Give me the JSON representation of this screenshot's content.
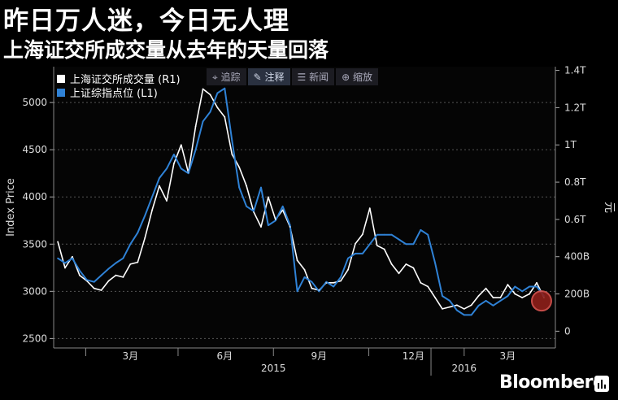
{
  "header": {
    "title": "昨日万人迷，今日无人理",
    "subtitle": "上海证交所成交量从去年的天量回落"
  },
  "toolbar": {
    "items": [
      {
        "label": "追踪",
        "icon": "crosshair-icon"
      },
      {
        "label": "注释",
        "icon": "pencil-icon"
      },
      {
        "label": "新闻",
        "icon": "news-icon"
      },
      {
        "label": "缩放",
        "icon": "zoom-icon"
      }
    ]
  },
  "brand": "Bloomberg",
  "colors": {
    "background": "#000000",
    "volume": "#ffffff",
    "index": "#2f82d6",
    "highlight": "#c0392b"
  },
  "chart_data": {
    "type": "line",
    "legend_placement": "top-left",
    "ylabel_left": "Index Price",
    "ylabel_right": "元",
    "x_tick_labels": [
      "3月",
      "6月",
      "9月",
      "12月",
      "3月"
    ],
    "x_year_labels": [
      "2015",
      "2016"
    ],
    "y_left_ticks": [
      2500,
      3000,
      3500,
      4000,
      4500,
      5000
    ],
    "y_left_tick_labels": [
      "2500",
      "3000",
      "3500",
      "4000",
      "4500",
      "5000"
    ],
    "y_left_range": [
      2400,
      5380
    ],
    "y_right_ticks": [
      0,
      200,
      400,
      600,
      800,
      1000,
      1200,
      1400
    ],
    "y_right_tick_labels": [
      "0",
      "200B",
      "400B",
      "0.6T",
      "0.8T",
      "1T",
      "1.2T",
      "1.4T"
    ],
    "y_right_range": [
      -90,
      1420
    ],
    "series": [
      {
        "name": "上海证交所成交量 (R1)",
        "axis": "right",
        "color": "#ffffff",
        "x": [
          "2015-01-05",
          "2015-01-12",
          "2015-01-19",
          "2015-01-26",
          "2015-02-02",
          "2015-02-09",
          "2015-02-16",
          "2015-02-23",
          "2015-03-02",
          "2015-03-09",
          "2015-03-16",
          "2015-03-23",
          "2015-03-30",
          "2015-04-06",
          "2015-04-13",
          "2015-04-20",
          "2015-04-27",
          "2015-05-04",
          "2015-05-11",
          "2015-05-18",
          "2015-05-25",
          "2015-06-01",
          "2015-06-08",
          "2015-06-15",
          "2015-06-22",
          "2015-06-29",
          "2015-07-06",
          "2015-07-13",
          "2015-07-20",
          "2015-07-27",
          "2015-08-03",
          "2015-08-10",
          "2015-08-17",
          "2015-08-24",
          "2015-08-31",
          "2015-09-07",
          "2015-09-14",
          "2015-09-21",
          "2015-09-28",
          "2015-10-05",
          "2015-10-12",
          "2015-10-19",
          "2015-10-26",
          "2015-11-02",
          "2015-11-09",
          "2015-11-16",
          "2015-11-23",
          "2015-11-30",
          "2015-12-07",
          "2015-12-14",
          "2015-12-21",
          "2015-12-28",
          "2016-01-04",
          "2016-01-11",
          "2016-01-18",
          "2016-01-25",
          "2016-02-01",
          "2016-02-08",
          "2016-02-15",
          "2016-02-22",
          "2016-02-29",
          "2016-03-07",
          "2016-03-14",
          "2016-03-21",
          "2016-03-28",
          "2016-04-04",
          "2016-04-11",
          "2016-04-18"
        ],
        "values": [
          480,
          340,
          400,
          300,
          270,
          230,
          220,
          270,
          300,
          290,
          360,
          370,
          500,
          650,
          780,
          700,
          900,
          1000,
          850,
          1100,
          1300,
          1270,
          1200,
          1150,
          950,
          880,
          780,
          640,
          560,
          720,
          600,
          650,
          560,
          380,
          330,
          230,
          220,
          260,
          260,
          270,
          330,
          470,
          520,
          660,
          460,
          440,
          360,
          310,
          360,
          340,
          260,
          240,
          180,
          120,
          130,
          140,
          120,
          140,
          190,
          230,
          180,
          180,
          250,
          200,
          180,
          200,
          260,
          180
        ]
      },
      {
        "name": "上证综指点位 (L1)",
        "axis": "left",
        "color": "#2f82d6",
        "x": [
          "2015-01-05",
          "2015-01-12",
          "2015-01-19",
          "2015-01-26",
          "2015-02-02",
          "2015-02-09",
          "2015-02-16",
          "2015-02-23",
          "2015-03-02",
          "2015-03-09",
          "2015-03-16",
          "2015-03-23",
          "2015-03-30",
          "2015-04-06",
          "2015-04-13",
          "2015-04-20",
          "2015-04-27",
          "2015-05-04",
          "2015-05-11",
          "2015-05-18",
          "2015-05-25",
          "2015-06-01",
          "2015-06-08",
          "2015-06-15",
          "2015-06-22",
          "2015-06-29",
          "2015-07-06",
          "2015-07-13",
          "2015-07-20",
          "2015-07-27",
          "2015-08-03",
          "2015-08-10",
          "2015-08-17",
          "2015-08-24",
          "2015-08-31",
          "2015-09-07",
          "2015-09-14",
          "2015-09-21",
          "2015-09-28",
          "2015-10-05",
          "2015-10-12",
          "2015-10-19",
          "2015-10-26",
          "2015-11-02",
          "2015-11-09",
          "2015-11-16",
          "2015-11-23",
          "2015-11-30",
          "2015-12-07",
          "2015-12-14",
          "2015-12-21",
          "2015-12-28",
          "2016-01-04",
          "2016-01-11",
          "2016-01-18",
          "2016-01-25",
          "2016-02-01",
          "2016-02-08",
          "2016-02-15",
          "2016-02-22",
          "2016-02-29",
          "2016-03-07",
          "2016-03-14",
          "2016-03-21",
          "2016-03-28",
          "2016-04-04",
          "2016-04-11",
          "2016-04-18"
        ],
        "values": [
          3350,
          3300,
          3350,
          3220,
          3120,
          3100,
          3170,
          3240,
          3300,
          3350,
          3500,
          3620,
          3800,
          4000,
          4200,
          4300,
          4450,
          4300,
          4250,
          4500,
          4800,
          4900,
          5100,
          5150,
          4600,
          4100,
          3900,
          3850,
          4100,
          3700,
          3750,
          3900,
          3700,
          3000,
          3150,
          3100,
          3000,
          3100,
          3050,
          3150,
          3350,
          3400,
          3400,
          3500,
          3600,
          3600,
          3600,
          3550,
          3500,
          3500,
          3650,
          3600,
          3300,
          2950,
          2900,
          2800,
          2750,
          2750,
          2850,
          2900,
          2850,
          2900,
          2950,
          3050,
          3000,
          3050,
          3050,
          2950
        ]
      }
    ],
    "highlight": {
      "x": "2016-04-18",
      "series": "上海证交所成交量 (R1)"
    }
  }
}
